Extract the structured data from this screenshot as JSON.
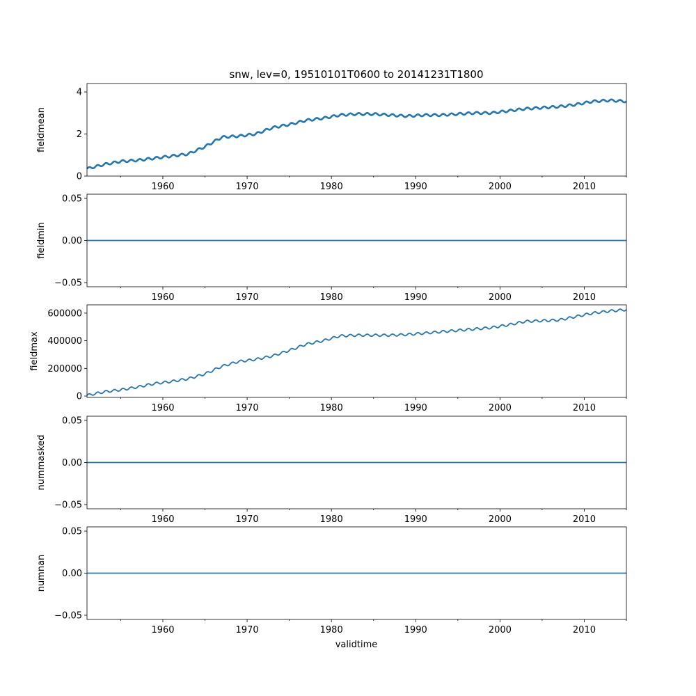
{
  "title": "snw, lev=0, 19510101T0600 to 20141231T1800",
  "xlabel": "validtime",
  "line_color": "#1f77b4",
  "chart_data": [
    {
      "type": "line",
      "ylabel": "fieldmean",
      "xlim": [
        1951.0,
        2015.0
      ],
      "ylim": [
        0,
        4.4
      ],
      "xticks": [
        1960,
        1970,
        1980,
        1990,
        2000,
        2010
      ],
      "xtick_labels": [
        "1960",
        "1970",
        "1980",
        "1990",
        "2000",
        "2010"
      ],
      "yticks": [
        0,
        2,
        4
      ],
      "ytick_labels": [
        "0",
        "2",
        "4"
      ],
      "x": [
        1951,
        1953,
        1955,
        1957,
        1959,
        1961,
        1963,
        1965,
        1967,
        1969,
        1971,
        1973,
        1975,
        1977,
        1979,
        1981,
        1983,
        1985,
        1987,
        1989,
        1991,
        1993,
        1995,
        1997,
        1999,
        2001,
        2003,
        2005,
        2007,
        2009,
        2011,
        2013,
        2015
      ],
      "y": [
        0.35,
        0.55,
        0.7,
        0.75,
        0.85,
        0.95,
        1.05,
        1.4,
        1.85,
        1.9,
        2.0,
        2.3,
        2.45,
        2.65,
        2.75,
        2.9,
        2.95,
        2.95,
        2.9,
        2.85,
        2.9,
        2.9,
        2.95,
        3.0,
        3.0,
        3.1,
        3.2,
        3.25,
        3.3,
        3.4,
        3.55,
        3.6,
        3.55
      ]
    },
    {
      "type": "line",
      "ylabel": "fieldmin",
      "xlim": [
        1951.0,
        2015.0
      ],
      "ylim": [
        -0.055,
        0.055
      ],
      "xticks": [
        1960,
        1970,
        1980,
        1990,
        2000,
        2010
      ],
      "xtick_labels": [
        "1960",
        "1970",
        "1980",
        "1990",
        "2000",
        "2010"
      ],
      "yticks": [
        -0.05,
        0.0,
        0.05
      ],
      "ytick_labels": [
        "−0.05",
        "0.00",
        "0.05"
      ],
      "x": [
        1951,
        2015
      ],
      "y": [
        0,
        0
      ]
    },
    {
      "type": "line",
      "ylabel": "fieldmax",
      "xlim": [
        1951.0,
        2015.0
      ],
      "ylim": [
        -10000,
        660000
      ],
      "xticks": [
        1960,
        1970,
        1980,
        1990,
        2000,
        2010
      ],
      "xtick_labels": [
        "1960",
        "1970",
        "1980",
        "1990",
        "2000",
        "2010"
      ],
      "yticks": [
        0,
        200000,
        400000,
        600000
      ],
      "ytick_labels": [
        "0",
        "200000",
        "400000",
        "600000"
      ],
      "x": [
        1951,
        1953,
        1955,
        1957,
        1959,
        1961,
        1963,
        1965,
        1967,
        1969,
        1971,
        1973,
        1975,
        1977,
        1979,
        1981,
        1983,
        1985,
        1987,
        1989,
        1991,
        1993,
        1995,
        1997,
        1999,
        2001,
        2003,
        2005,
        2007,
        2009,
        2011,
        2013,
        2015
      ],
      "y": [
        5000,
        30000,
        45000,
        65000,
        90000,
        105000,
        125000,
        160000,
        215000,
        250000,
        265000,
        290000,
        330000,
        375000,
        400000,
        435000,
        440000,
        440000,
        440000,
        445000,
        455000,
        465000,
        475000,
        485000,
        495000,
        515000,
        540000,
        545000,
        550000,
        575000,
        600000,
        615000,
        625000
      ]
    },
    {
      "type": "line",
      "ylabel": "nummasked",
      "xlim": [
        1951.0,
        2015.0
      ],
      "ylim": [
        -0.055,
        0.055
      ],
      "xticks": [
        1960,
        1970,
        1980,
        1990,
        2000,
        2010
      ],
      "xtick_labels": [
        "1960",
        "1970",
        "1980",
        "1990",
        "2000",
        "2010"
      ],
      "yticks": [
        -0.05,
        0.0,
        0.05
      ],
      "ytick_labels": [
        "−0.05",
        "0.00",
        "0.05"
      ],
      "x": [
        1951,
        2015
      ],
      "y": [
        0,
        0
      ]
    },
    {
      "type": "line",
      "ylabel": "numnan",
      "xlim": [
        1951.0,
        2015.0
      ],
      "ylim": [
        -0.055,
        0.055
      ],
      "xticks": [
        1960,
        1970,
        1980,
        1990,
        2000,
        2010
      ],
      "xtick_labels": [
        "1960",
        "1970",
        "1980",
        "1990",
        "2000",
        "2010"
      ],
      "yticks": [
        -0.05,
        0.0,
        0.05
      ],
      "ytick_labels": [
        "−0.05",
        "0.00",
        "0.05"
      ],
      "x": [
        1951,
        2015
      ],
      "y": [
        0,
        0
      ]
    }
  ]
}
